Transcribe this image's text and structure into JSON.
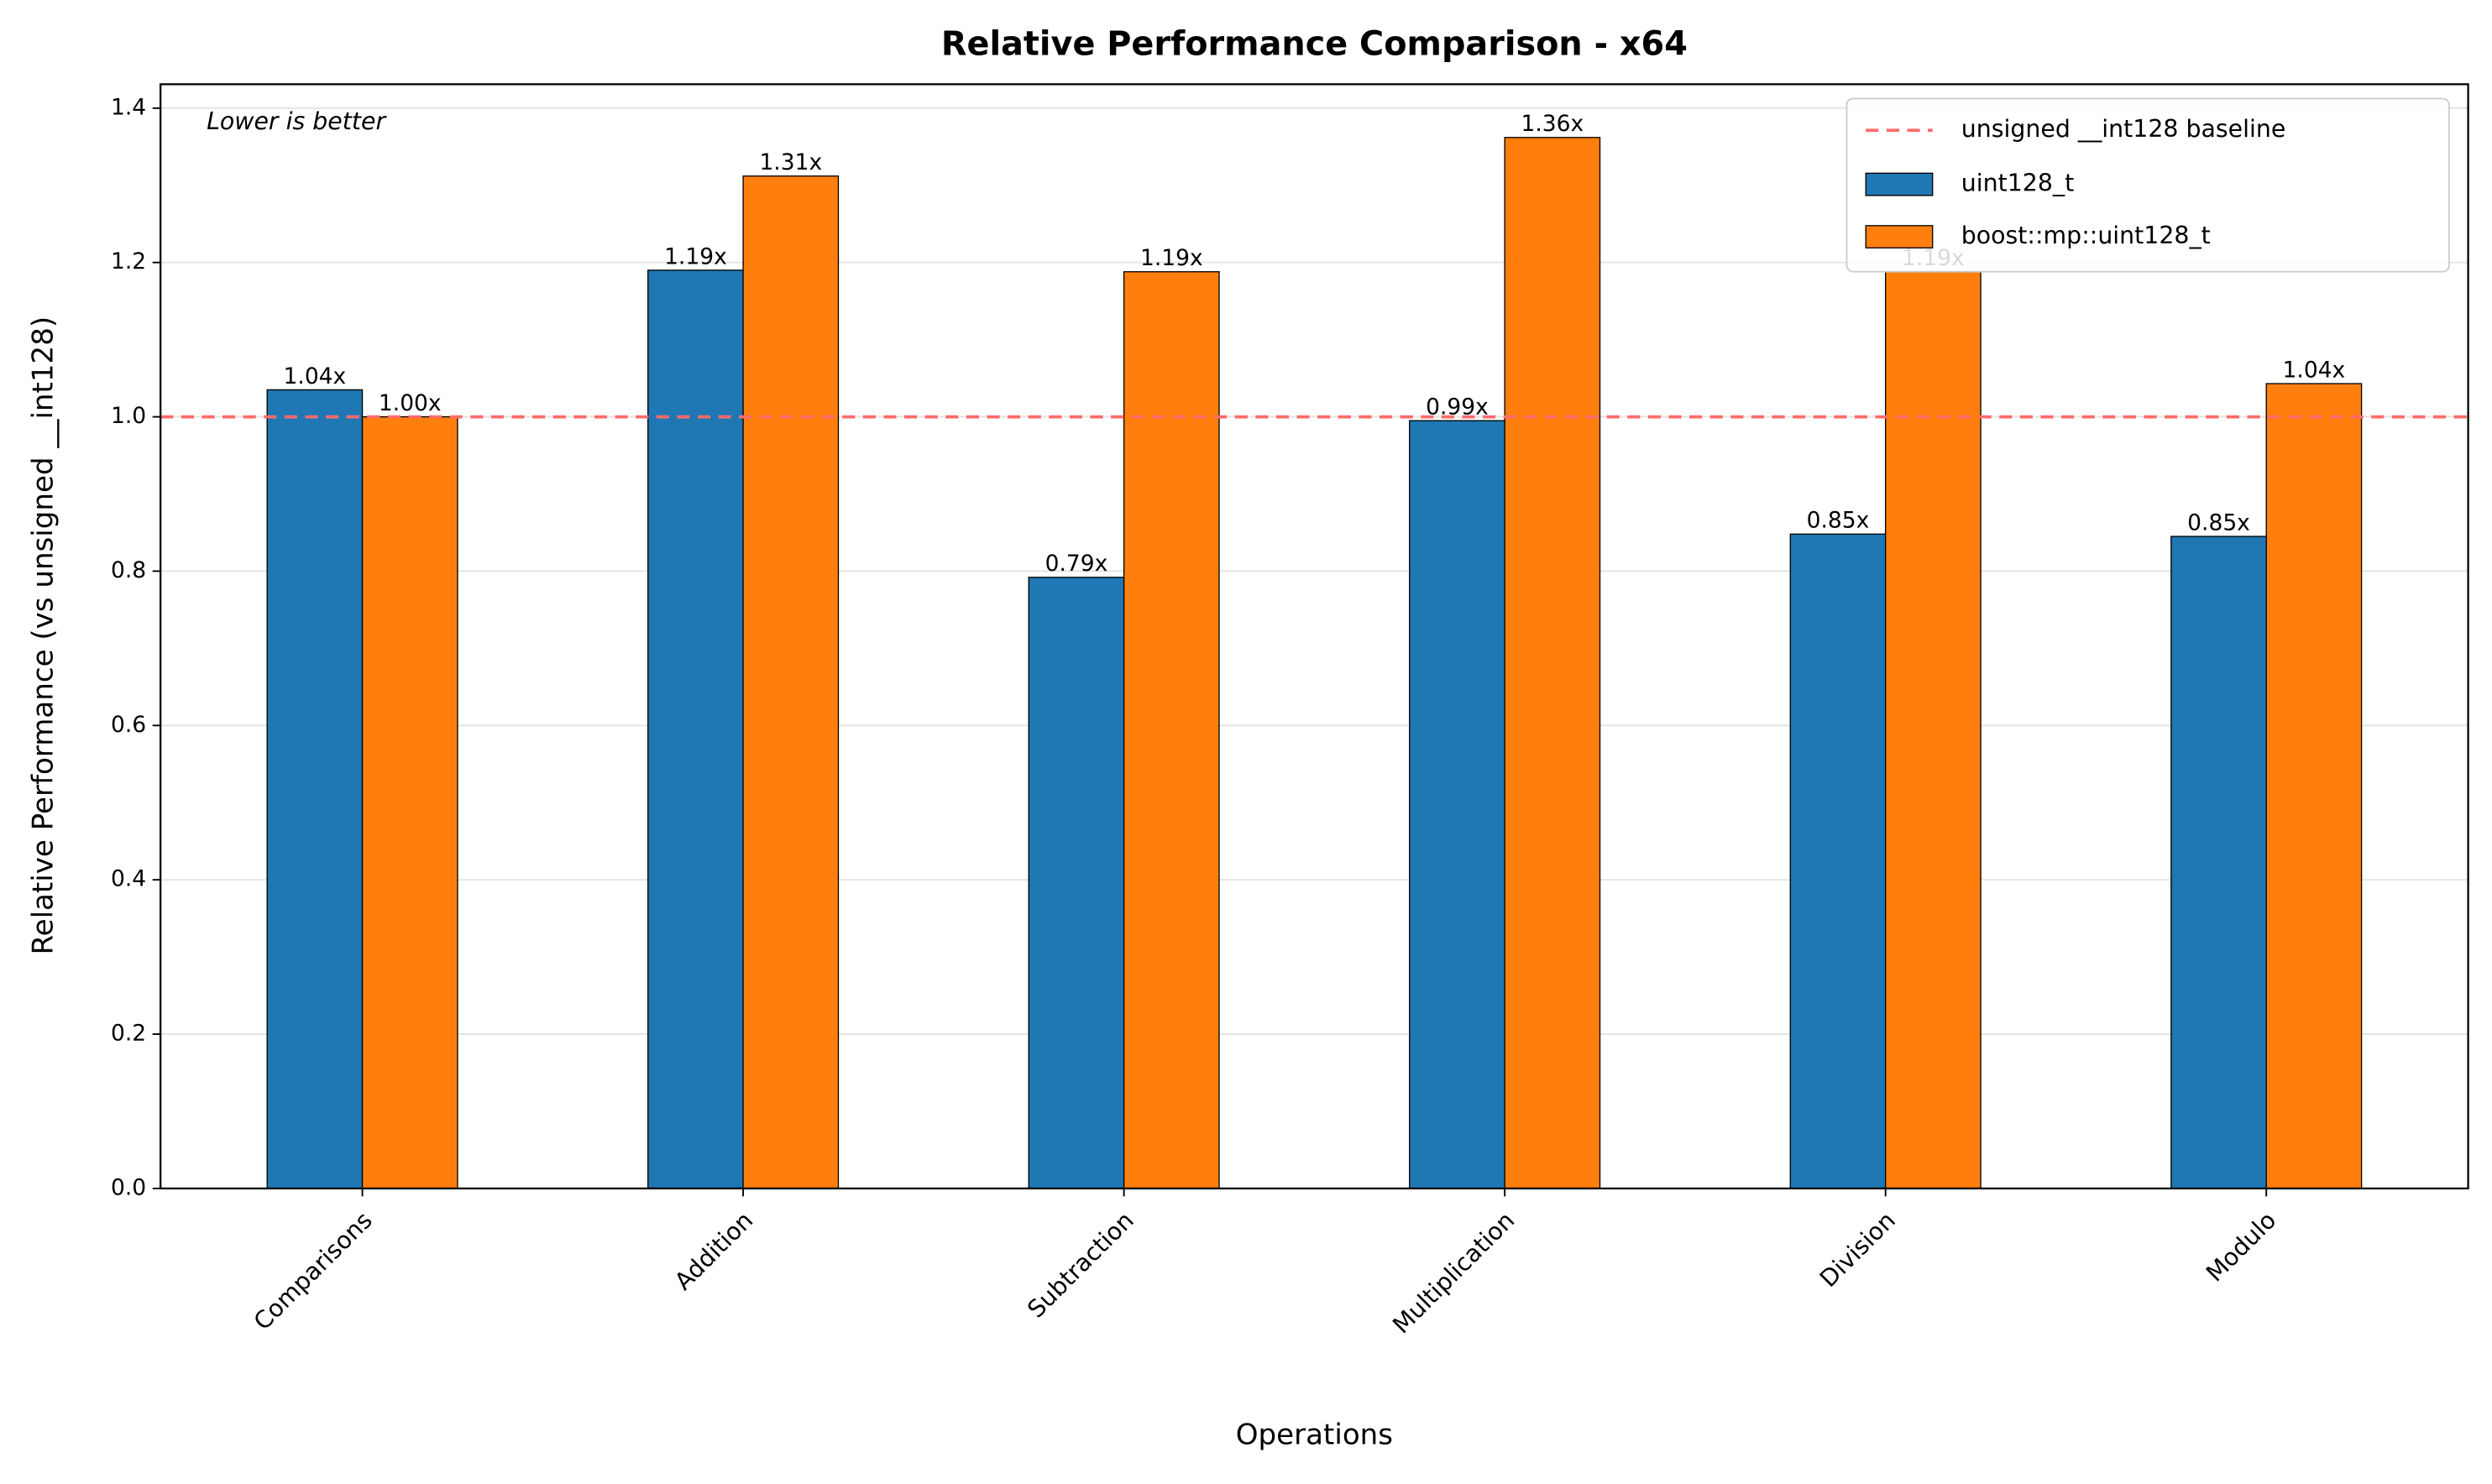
{
  "chart_data": {
    "type": "bar",
    "title": "Relative Performance Comparison - x64",
    "x_label": "Operations",
    "y_label": "Relative Performance (vs unsigned __int128)",
    "annotation": "Lower is better",
    "categories": [
      "Comparisons",
      "Addition",
      "Subtraction",
      "Multiplication",
      "Division",
      "Modulo"
    ],
    "series": [
      {
        "name": "uint128_t",
        "color": "#1f77b4",
        "values": [
          1.035,
          1.19,
          0.792,
          0.995,
          0.848,
          0.845
        ],
        "value_labels": [
          "1.04x",
          "1.19x",
          "0.79x",
          "0.99x",
          "0.85x",
          "0.85x"
        ]
      },
      {
        "name": "boost::mp::uint128_t",
        "color": "#ff7f0e",
        "values": [
          1.0,
          1.312,
          1.188,
          1.362,
          1.188,
          1.043
        ],
        "value_labels": [
          "1.00x",
          "1.31x",
          "1.19x",
          "1.36x",
          "1.19x",
          "1.04x"
        ]
      }
    ],
    "baseline": {
      "name": "unsigned __int128 baseline",
      "value": 1,
      "color": "#ff6b6b"
    },
    "ylim": [
      0,
      1.431
    ],
    "yticks": [
      {
        "value": 0,
        "label": "0.0"
      },
      0.2,
      0.4,
      0.6,
      0.8,
      {
        "value": 1,
        "label": "1.0"
      },
      1.2,
      1.4
    ],
    "grid": true,
    "legend": "upper right"
  }
}
